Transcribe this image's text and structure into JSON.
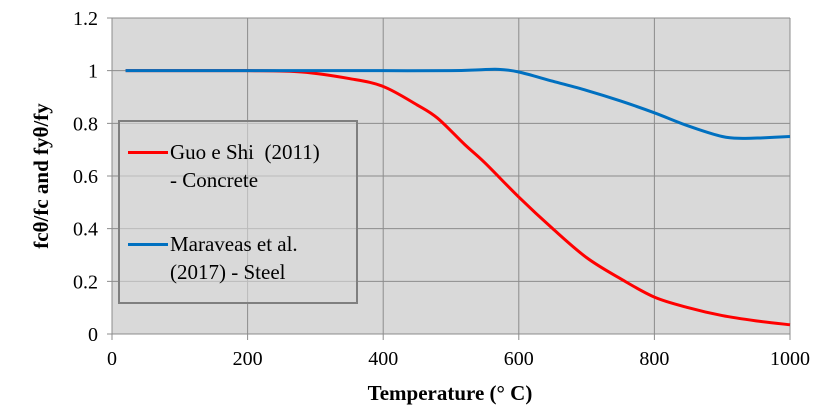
{
  "chart_data": {
    "type": "line",
    "title": "",
    "xlabel": "Temperature (° C)",
    "ylabel": "fcθ/fc and fyθ/fy",
    "xlim": [
      0,
      1000
    ],
    "ylim": [
      0,
      1.2
    ],
    "xticks": [
      "0",
      "200",
      "400",
      "600",
      "800",
      "1000"
    ],
    "yticks": [
      "0",
      "0.2",
      "0.4",
      "0.6",
      "0.8",
      "1",
      "1.2"
    ],
    "grid": true,
    "legend_position": "left",
    "background": "#d9d9d9",
    "series": [
      {
        "name": "Guo e Shi  (2011) - Concrete",
        "legend_lines": [
          "Guo e Shi  (2011)",
          "- Concrete"
        ],
        "color": "#ff0000",
        "x": [
          20,
          100,
          200,
          280,
          350,
          400,
          450,
          480,
          520,
          550,
          600,
          650,
          700,
          750,
          800,
          850,
          900,
          950,
          1000
        ],
        "y": [
          1,
          1,
          1,
          0.995,
          0.97,
          0.94,
          0.87,
          0.82,
          0.72,
          0.65,
          0.52,
          0.4,
          0.29,
          0.21,
          0.14,
          0.1,
          0.07,
          0.05,
          0.035
        ]
      },
      {
        "name": "Maraveas et al. (2017) - Steel",
        "legend_lines": [
          "Maraveas et al.",
          "(2017) - Steel"
        ],
        "color": "#0070c0",
        "x": [
          20,
          100,
          200,
          300,
          400,
          500,
          540,
          570,
          600,
          650,
          700,
          750,
          800,
          850,
          900,
          930,
          960,
          1000
        ],
        "y": [
          1,
          1,
          1,
          1,
          1,
          1,
          1.003,
          1.005,
          0.995,
          0.96,
          0.925,
          0.885,
          0.84,
          0.79,
          0.75,
          0.743,
          0.745,
          0.75
        ]
      }
    ]
  }
}
